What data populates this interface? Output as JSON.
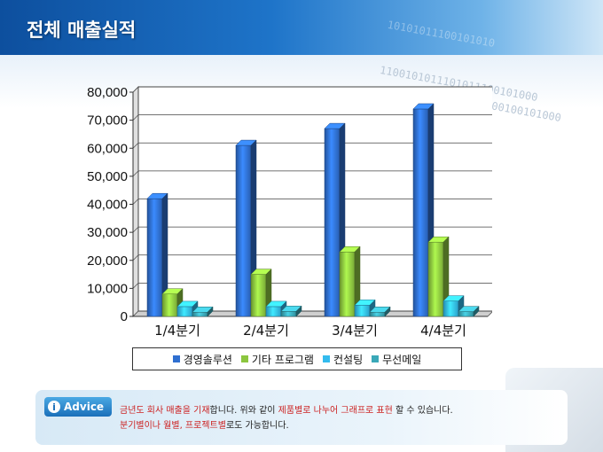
{
  "page": {
    "title": "전체 매출실적"
  },
  "decor": {
    "binary_row1": "10101011100101010",
    "binary_row2": "1100101011101011100101000",
    "binary_row3": "0011101101011100100101000"
  },
  "chart_data": {
    "type": "bar",
    "categories": [
      "1/4분기",
      "2/4분기",
      "3/4분기",
      "4/4분기"
    ],
    "series": [
      {
        "name": "경영솔루션",
        "values": [
          42000,
          61000,
          67000,
          74000
        ],
        "color": "#2f6fd0"
      },
      {
        "name": "기타 프로그램",
        "values": [
          8000,
          15000,
          23000,
          26500
        ],
        "color": "#8cc63f"
      },
      {
        "name": "컨설팅",
        "values": [
          3500,
          3500,
          4000,
          5500
        ],
        "color": "#33bbee"
      },
      {
        "name": "무선메일",
        "values": [
          1500,
          1800,
          1500,
          1700
        ],
        "color": "#3aa8b8"
      }
    ],
    "yticks": [
      "0",
      "10,000",
      "20,000",
      "30,000",
      "40,000",
      "50,000",
      "60,000",
      "70,000",
      "80,000"
    ],
    "ylim": [
      0,
      80000
    ],
    "grid": true,
    "legend": "bottom"
  },
  "advice": {
    "badge_label": "Advice",
    "badge_icon": "i",
    "line1": [
      {
        "text": "금년도 회사 매출을 기재",
        "style": "red"
      },
      {
        "text": "합니다. 위와 같이 ",
        "style": "normal"
      },
      {
        "text": "제품별로 나누어 그래프로 표현",
        "style": "red"
      },
      {
        "text": " 할 수 있습니다.",
        "style": "normal"
      }
    ],
    "line2": [
      {
        "text": "분기별이나 월별, 프로젝트별",
        "style": "red"
      },
      {
        "text": "로도 가능합니다.",
        "style": "normal"
      }
    ]
  }
}
